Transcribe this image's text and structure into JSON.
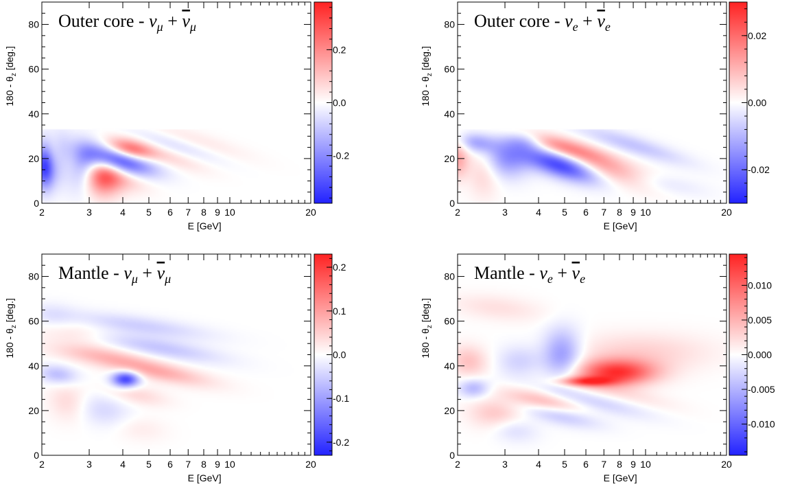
{
  "chart_data": [
    {
      "type": "heatmap",
      "title_prefix": "Outer core - ",
      "flavor": "mu",
      "xlabel": "E [GeV]",
      "ylabel": "180 - θz [deg.]",
      "xscale": "log",
      "xlim": [
        2,
        20
      ],
      "ylim": [
        0,
        90
      ],
      "xticks": [
        2,
        3,
        4,
        5,
        6,
        7,
        8,
        9,
        10,
        20
      ],
      "yticks": [
        0,
        20,
        40,
        60,
        80
      ],
      "zlim": [
        -0.38,
        0.38
      ],
      "colorbar_ticks": [
        "0.2",
        "0.0",
        "-0.2"
      ],
      "colorbar_values": [
        0.2,
        0.0,
        -0.2
      ],
      "features": [
        {
          "x": 2.05,
          "y": 17,
          "sx": 0.025,
          "sy": 7,
          "value": -0.34,
          "tilt": -0.06
        },
        {
          "x": 2.3,
          "y": 20,
          "sx": 0.04,
          "sy": 8,
          "value": -0.18,
          "tilt": -0.12
        },
        {
          "x": 2.15,
          "y": 22,
          "sx": 0.03,
          "sy": 6,
          "value": 0.14,
          "tilt": -0.08
        },
        {
          "x": 2.55,
          "y": 18,
          "sx": 0.04,
          "sy": 7,
          "value": 0.15,
          "tilt": -0.15
        },
        {
          "x": 2.75,
          "y": 16,
          "sx": 0.04,
          "sy": 8,
          "value": -0.15,
          "tilt": -0.2
        },
        {
          "x": 3.3,
          "y": 12,
          "sx": 0.05,
          "sy": 6,
          "value": 0.3,
          "tilt": -0.25
        },
        {
          "x": 3.0,
          "y": 16,
          "sx": 0.05,
          "sy": 6,
          "value": -0.16,
          "tilt": -0.25
        },
        {
          "x": 3.9,
          "y": 19,
          "sx": 0.09,
          "sy": 4,
          "value": -0.33,
          "tilt": -0.75
        },
        {
          "x": 4.25,
          "y": 24,
          "sx": 0.06,
          "sy": 3,
          "value": 0.27,
          "tilt": -0.6
        },
        {
          "x": 3.8,
          "y": 12,
          "sx": 0.08,
          "sy": 4,
          "value": 0.12,
          "tilt": -0.6
        },
        {
          "x": 5.8,
          "y": 21,
          "sx": 0.1,
          "sy": 3,
          "value": 0.07,
          "tilt": -0.9
        },
        {
          "x": 6.2,
          "y": 26,
          "sx": 0.12,
          "sy": 3,
          "value": -0.06,
          "tilt": -0.9
        },
        {
          "x": 7.5,
          "y": 28,
          "sx": 0.14,
          "sy": 3,
          "value": 0.04,
          "tilt": -0.9
        }
      ]
    },
    {
      "type": "heatmap",
      "title_prefix": "Outer core - ",
      "flavor": "e",
      "xlabel": "E [GeV]",
      "ylabel": "180 - θz [deg.]",
      "xscale": "log",
      "xlim": [
        2,
        20
      ],
      "ylim": [
        0,
        90
      ],
      "xticks": [
        2,
        3,
        4,
        5,
        6,
        7,
        8,
        9,
        10,
        20
      ],
      "yticks": [
        0,
        20,
        40,
        60,
        80
      ],
      "zlim": [
        -0.03,
        0.03
      ],
      "colorbar_ticks": [
        "0.02",
        "0.00",
        "-0.02"
      ],
      "colorbar_values": [
        0.02,
        0.0,
        -0.02
      ],
      "features": [
        {
          "x": 2.0,
          "y": 20,
          "sx": 0.03,
          "sy": 6,
          "value": 0.012,
          "tilt": 0
        },
        {
          "x": 2.35,
          "y": 27,
          "sx": 0.05,
          "sy": 3,
          "value": -0.012,
          "tilt": -0.3
        },
        {
          "x": 2.5,
          "y": 14,
          "sx": 0.04,
          "sy": 8,
          "value": 0.006,
          "tilt": -0.2
        },
        {
          "x": 3.05,
          "y": 20,
          "sx": 0.06,
          "sy": 6,
          "value": -0.014,
          "tilt": -0.2
        },
        {
          "x": 3.6,
          "y": 28,
          "sx": 0.05,
          "sy": 3,
          "value": -0.01,
          "tilt": -0.3
        },
        {
          "x": 4.9,
          "y": 17,
          "sx": 0.1,
          "sy": 4,
          "value": -0.028,
          "tilt": -0.85
        },
        {
          "x": 5.0,
          "y": 25,
          "sx": 0.12,
          "sy": 3,
          "value": 0.016,
          "tilt": -0.8
        },
        {
          "x": 7.0,
          "y": 15,
          "sx": 0.12,
          "sy": 4,
          "value": 0.013,
          "tilt": -0.85
        },
        {
          "x": 9.0,
          "y": 26,
          "sx": 0.14,
          "sy": 3,
          "value": -0.008,
          "tilt": -0.9
        },
        {
          "x": 11.0,
          "y": 9,
          "sx": 0.12,
          "sy": 3,
          "value": -0.004,
          "tilt": -0.5
        }
      ]
    },
    {
      "type": "heatmap",
      "title_prefix": "Mantle - ",
      "flavor": "mu",
      "xlabel": "E [GeV]",
      "ylabel": "180 - θz [deg.]",
      "xscale": "log",
      "xlim": [
        2,
        20
      ],
      "ylim": [
        0,
        90
      ],
      "xticks": [
        2,
        3,
        4,
        5,
        6,
        7,
        8,
        9,
        10,
        20
      ],
      "yticks": [
        0,
        20,
        40,
        60,
        80
      ],
      "zlim": [
        -0.23,
        0.23
      ],
      "colorbar_ticks": [
        "0.2",
        "0.1",
        "0.0",
        "-0.1",
        "-0.2"
      ],
      "colorbar_values": [
        0.2,
        0.1,
        0.0,
        -0.1,
        -0.2
      ],
      "features": [
        {
          "x": 4.1,
          "y": 34,
          "sx": 0.035,
          "sy": 2.5,
          "value": -0.2,
          "tilt": 0
        },
        {
          "x": 5.2,
          "y": 38,
          "sx": 0.14,
          "sy": 3,
          "value": 0.09,
          "tilt": -0.6
        },
        {
          "x": 5.5,
          "y": 48,
          "sx": 0.16,
          "sy": 3,
          "value": -0.06,
          "tilt": -0.5
        },
        {
          "x": 4.6,
          "y": 58,
          "sx": 0.18,
          "sy": 3,
          "value": -0.05,
          "tilt": -0.4
        },
        {
          "x": 3.2,
          "y": 45,
          "sx": 0.12,
          "sy": 3,
          "value": 0.05,
          "tilt": -0.35
        },
        {
          "x": 2.6,
          "y": 55,
          "sx": 0.1,
          "sy": 4,
          "value": 0.03,
          "tilt": -0.3
        },
        {
          "x": 2.2,
          "y": 62,
          "sx": 0.06,
          "sy": 4,
          "value": -0.03,
          "tilt": -0.25
        },
        {
          "x": 2.3,
          "y": 36,
          "sx": 0.05,
          "sy": 3,
          "value": -0.07,
          "tilt": -0.3
        },
        {
          "x": 2.5,
          "y": 24,
          "sx": 0.05,
          "sy": 6,
          "value": 0.04,
          "tilt": -0.3
        },
        {
          "x": 3.4,
          "y": 20,
          "sx": 0.07,
          "sy": 5,
          "value": -0.04,
          "tilt": -0.4
        },
        {
          "x": 4.5,
          "y": 27,
          "sx": 0.08,
          "sy": 3,
          "value": 0.04,
          "tilt": -0.5
        },
        {
          "x": 4.6,
          "y": 12,
          "sx": 0.07,
          "sy": 4,
          "value": 0.02,
          "tilt": -0.3
        }
      ]
    },
    {
      "type": "heatmap",
      "title_prefix": "Mantle - ",
      "flavor": "e",
      "xlabel": "E [GeV]",
      "ylabel": "180 - θz [deg.]",
      "xscale": "log",
      "xlim": [
        2,
        20
      ],
      "ylim": [
        0,
        90
      ],
      "xticks": [
        2,
        3,
        4,
        5,
        6,
        7,
        8,
        9,
        10,
        20
      ],
      "yticks": [
        0,
        20,
        40,
        60,
        80
      ],
      "zlim": [
        -0.0145,
        0.0145
      ],
      "colorbar_ticks": [
        "0.010",
        "0.005",
        "0.000",
        "-0.005",
        "-0.010"
      ],
      "colorbar_values": [
        0.01,
        0.005,
        0.0,
        -0.005,
        -0.01
      ],
      "features": [
        {
          "x": 7.8,
          "y": 37,
          "sx": 0.1,
          "sy": 4,
          "value": 0.013,
          "tilt": 0
        },
        {
          "x": 6.0,
          "y": 33,
          "sx": 0.07,
          "sy": 1.5,
          "value": 0.01,
          "tilt": 0
        },
        {
          "x": 4.9,
          "y": 45,
          "sx": 0.05,
          "sy": 8,
          "value": -0.007,
          "tilt": 0
        },
        {
          "x": 9.5,
          "y": 46,
          "sx": 0.18,
          "sy": 6,
          "value": 0.003,
          "tilt": 0
        },
        {
          "x": 3.4,
          "y": 42,
          "sx": 0.06,
          "sy": 5,
          "value": -0.003,
          "tilt": 0
        },
        {
          "x": 2.2,
          "y": 42,
          "sx": 0.05,
          "sy": 5,
          "value": 0.004,
          "tilt": -0.2
        },
        {
          "x": 2.3,
          "y": 30,
          "sx": 0.04,
          "sy": 3,
          "value": -0.005,
          "tilt": 0
        },
        {
          "x": 4.2,
          "y": 24,
          "sx": 0.1,
          "sy": 3,
          "value": 0.005,
          "tilt": -0.6
        },
        {
          "x": 4.8,
          "y": 18,
          "sx": 0.1,
          "sy": 3,
          "value": -0.004,
          "tilt": -0.6
        },
        {
          "x": 2.8,
          "y": 18,
          "sx": 0.07,
          "sy": 5,
          "value": 0.004,
          "tilt": -0.3
        },
        {
          "x": 3.2,
          "y": 12,
          "sx": 0.06,
          "sy": 4,
          "value": -0.003,
          "tilt": -0.3
        },
        {
          "x": 6.5,
          "y": 24,
          "sx": 0.14,
          "sy": 3,
          "value": -0.003,
          "tilt": -0.7
        },
        {
          "x": 8.0,
          "y": 28,
          "sx": 0.14,
          "sy": 3,
          "value": 0.002,
          "tilt": -0.7
        },
        {
          "x": 2.8,
          "y": 66,
          "sx": 0.12,
          "sy": 4,
          "value": 0.002,
          "tilt": -0.3
        }
      ]
    }
  ],
  "colors": {
    "negative": "#2222ff",
    "zero": "#ffffff",
    "positive": "#ff2222"
  }
}
